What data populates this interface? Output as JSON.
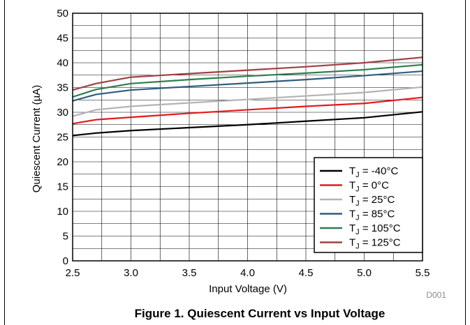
{
  "figure": {
    "caption": "Figure 1. Quiescent Current vs Input Voltage",
    "code": "D001"
  },
  "chart_data": {
    "type": "line",
    "xlabel": "Input Voltage (V)",
    "ylabel": "Quiescent Current (µA)",
    "xlim": [
      2.5,
      5.5
    ],
    "ylim": [
      0,
      50
    ],
    "xticks": [
      "2.5",
      "3.0",
      "3.5",
      "4.0",
      "4.5",
      "5.0",
      "5.5"
    ],
    "yticks": [
      "0",
      "5",
      "10",
      "15",
      "20",
      "25",
      "30",
      "35",
      "40",
      "45",
      "50"
    ],
    "grid": true,
    "legend_position": "bottom-right",
    "x": [
      2.5,
      2.7,
      3.0,
      3.5,
      4.0,
      4.5,
      5.0,
      5.5
    ],
    "series": [
      {
        "name": "TJ = -40°C",
        "color": "#000000",
        "values": [
          25.3,
          25.8,
          26.3,
          26.9,
          27.5,
          28.2,
          28.9,
          30.1
        ]
      },
      {
        "name": "TJ = 0°C",
        "color": "#e41a1c",
        "values": [
          27.7,
          28.5,
          29.0,
          29.8,
          30.5,
          31.2,
          31.8,
          33.0
        ]
      },
      {
        "name": "TJ = 25°C",
        "color": "#b3b3b3",
        "values": [
          29.2,
          30.5,
          31.2,
          31.9,
          32.6,
          33.3,
          34.0,
          35.1
        ]
      },
      {
        "name": "TJ = 85°C",
        "color": "#2e5e7e",
        "values": [
          32.3,
          33.6,
          34.5,
          35.2,
          35.9,
          36.6,
          37.4,
          38.3
        ]
      },
      {
        "name": "TJ = 105°C",
        "color": "#2e7d4f",
        "values": [
          33.1,
          34.6,
          35.8,
          36.6,
          37.3,
          37.9,
          38.6,
          39.6
        ]
      },
      {
        "name": "TJ = 125°C",
        "color": "#a04040",
        "values": [
          34.5,
          35.8,
          37.1,
          37.8,
          38.5,
          39.2,
          40.0,
          41.1
        ]
      }
    ]
  }
}
